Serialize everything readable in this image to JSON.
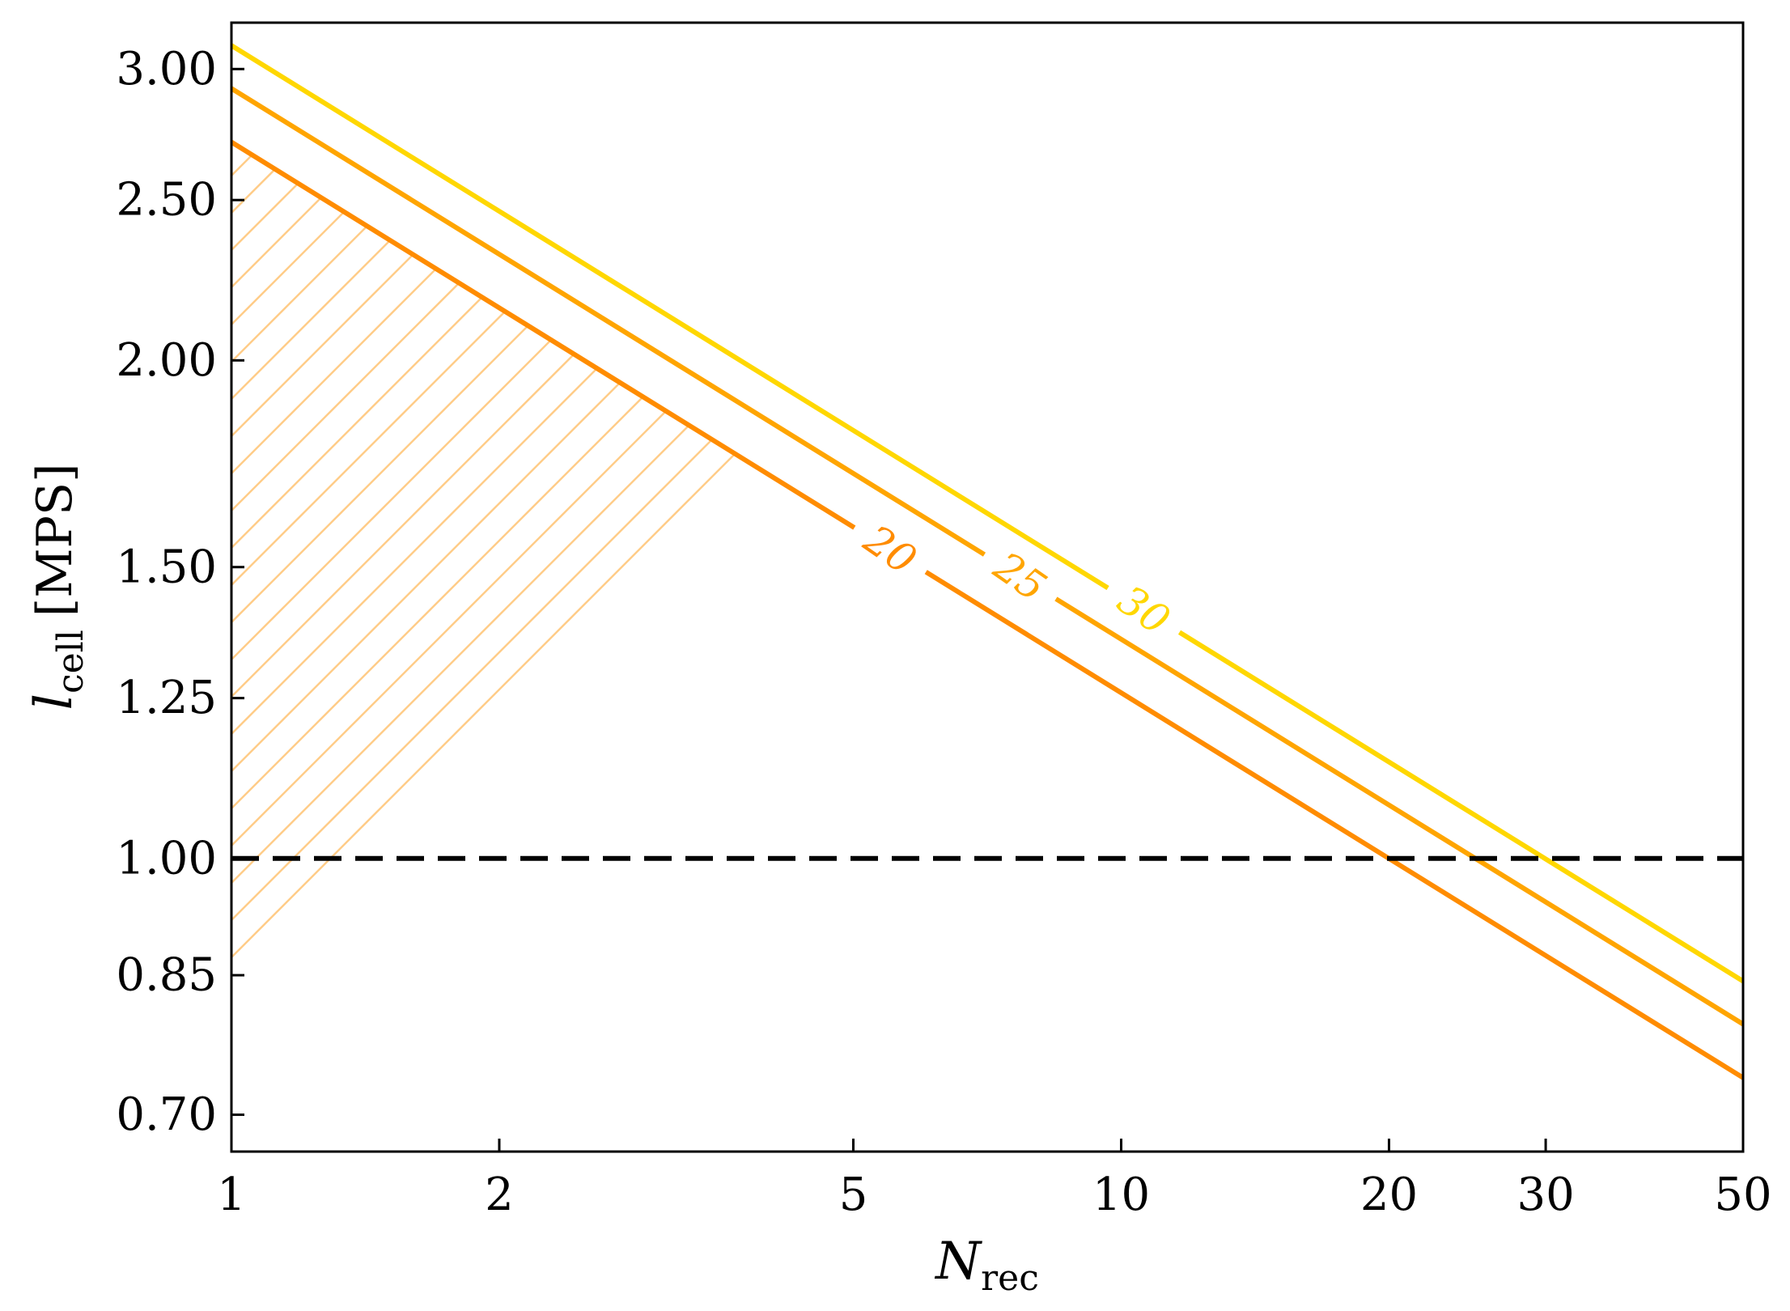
{
  "chart_data": {
    "type": "line",
    "xlabel": {
      "main": "N",
      "sub": "rec"
    },
    "ylabel": {
      "main": "l",
      "sub": "cell",
      "unit": "[MPS]"
    },
    "xscale": "log",
    "yscale": "log",
    "xlim": [
      1,
      50
    ],
    "ylim": [
      0.665,
      3.2
    ],
    "xticks": [
      1,
      2,
      5,
      10,
      20,
      30,
      50
    ],
    "xtick_labels": [
      "1",
      "2",
      "5",
      "10",
      "20",
      "30",
      "50"
    ],
    "yticks": [
      0.7,
      0.85,
      1.0,
      1.25,
      1.5,
      2.0,
      2.5,
      3.0
    ],
    "ytick_labels": [
      "0.70",
      "0.85",
      "1.00",
      "1.25",
      "1.50",
      "2.00",
      "2.50",
      "3.00"
    ],
    "grid": false,
    "series": [
      {
        "name": "20",
        "color": "#ff8c00",
        "x": [
          1,
          50
        ],
        "y": [
          2.71,
          0.737
        ],
        "label_at_x": 5.5
      },
      {
        "name": "25",
        "color": "#ffa500",
        "x": [
          1,
          50
        ],
        "y": [
          2.92,
          0.794
        ],
        "label_at_x": 7.7
      },
      {
        "name": "30",
        "color": "#ffd700",
        "x": [
          1,
          50
        ],
        "y": [
          3.1,
          0.843
        ],
        "label_at_x": 10.6
      }
    ],
    "reference_line": {
      "y": 1.0,
      "style": "dashed",
      "color": "#000000"
    },
    "hatched_region": {
      "below_series": "20",
      "color": "#ffcc88"
    }
  }
}
